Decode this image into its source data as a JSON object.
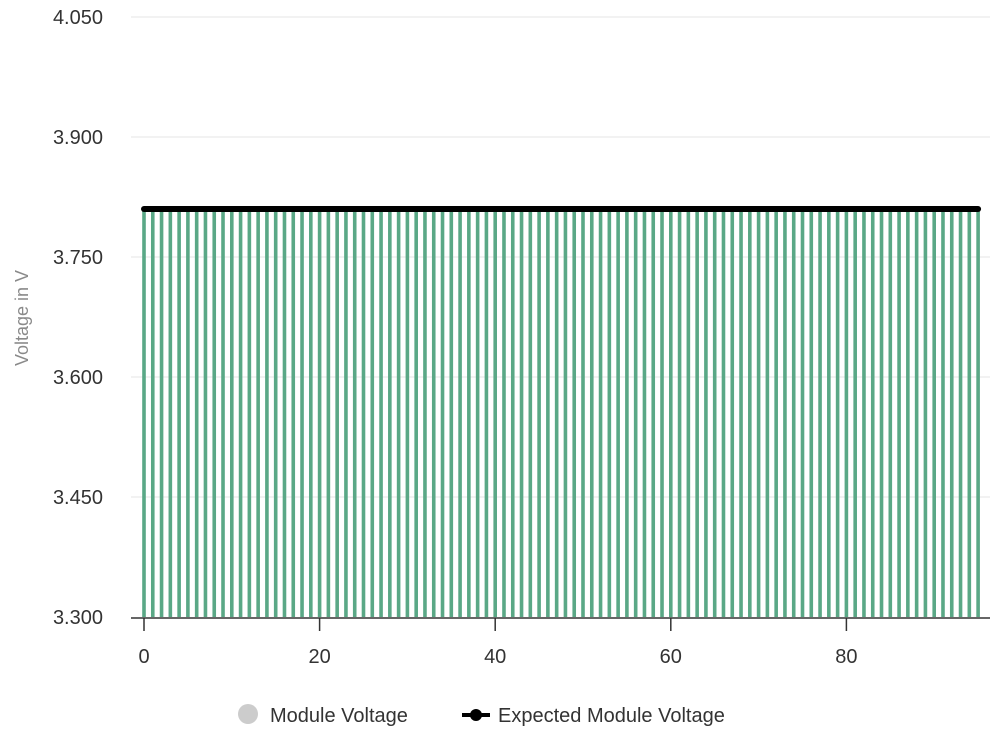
{
  "chart_data": {
    "type": "bar",
    "title": "",
    "xlabel": "",
    "ylabel": "Voltage in V",
    "x_range": [
      0,
      96
    ],
    "x_ticks": [
      "0",
      "20",
      "40",
      "60",
      "80"
    ],
    "ylim": [
      3.3,
      4.05
    ],
    "y_ticks": [
      "3.300",
      "3.450",
      "3.600",
      "3.750",
      "3.900",
      "4.050"
    ],
    "grid": true,
    "legend_position": "bottom-center",
    "series": [
      {
        "name": "Module Voltage",
        "type": "bar",
        "color": "#5aa886",
        "legend_color": "#cccccc",
        "x": [
          0,
          1,
          2,
          3,
          4,
          5,
          6,
          7,
          8,
          9,
          10,
          11,
          12,
          13,
          14,
          15,
          16,
          17,
          18,
          19,
          20,
          21,
          22,
          23,
          24,
          25,
          26,
          27,
          28,
          29,
          30,
          31,
          32,
          33,
          34,
          35,
          36,
          37,
          38,
          39,
          40,
          41,
          42,
          43,
          44,
          45,
          46,
          47,
          48,
          49,
          50,
          51,
          52,
          53,
          54,
          55,
          56,
          57,
          58,
          59,
          60,
          61,
          62,
          63,
          64,
          65,
          66,
          67,
          68,
          69,
          70,
          71,
          72,
          73,
          74,
          75,
          76,
          77,
          78,
          79,
          80,
          81,
          82,
          83,
          84,
          85,
          86,
          87,
          88,
          89,
          90,
          91,
          92,
          93,
          94,
          95
        ],
        "values": [
          3.81,
          3.81,
          3.81,
          3.81,
          3.81,
          3.81,
          3.81,
          3.81,
          3.81,
          3.81,
          3.81,
          3.81,
          3.81,
          3.81,
          3.81,
          3.81,
          3.81,
          3.81,
          3.81,
          3.81,
          3.81,
          3.81,
          3.81,
          3.81,
          3.81,
          3.81,
          3.81,
          3.81,
          3.81,
          3.81,
          3.81,
          3.81,
          3.81,
          3.81,
          3.81,
          3.81,
          3.81,
          3.81,
          3.81,
          3.81,
          3.81,
          3.81,
          3.81,
          3.81,
          3.81,
          3.81,
          3.81,
          3.81,
          3.81,
          3.81,
          3.81,
          3.81,
          3.81,
          3.81,
          3.81,
          3.81,
          3.81,
          3.81,
          3.81,
          3.81,
          3.81,
          3.81,
          3.81,
          3.81,
          3.81,
          3.81,
          3.81,
          3.81,
          3.81,
          3.81,
          3.81,
          3.81,
          3.81,
          3.81,
          3.81,
          3.81,
          3.81,
          3.81,
          3.81,
          3.81,
          3.81,
          3.81,
          3.81,
          3.81,
          3.81,
          3.81,
          3.81,
          3.81,
          3.81,
          3.81,
          3.81,
          3.81,
          3.81,
          3.81,
          3.81,
          3.81
        ]
      },
      {
        "name": "Expected Module Voltage",
        "type": "line",
        "color": "#000000",
        "x": [
          0,
          95
        ],
        "values": [
          3.81,
          3.81
        ]
      }
    ]
  }
}
